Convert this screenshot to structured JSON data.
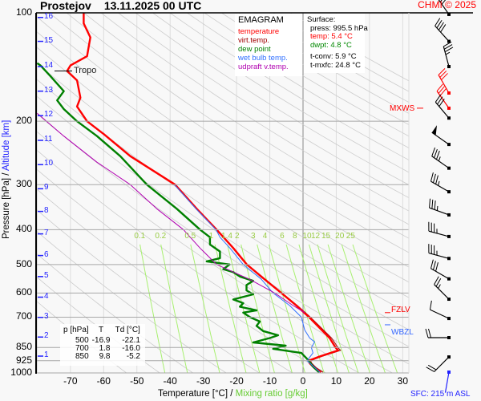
{
  "header": {
    "station": "Prostejov",
    "datetime": "13.11.2025 00 UTC",
    "copyright": "CHMI © 2025"
  },
  "legend": {
    "title": "EMAGRAM",
    "items": [
      {
        "label": "temperature",
        "color": "#ff0000"
      },
      {
        "label": "virt.temp.",
        "color": "#a00000"
      },
      {
        "label": "dew point",
        "color": "#008000"
      },
      {
        "label": "wet bulb temp.",
        "color": "#3070ff"
      },
      {
        "label": "udpraft v.temp.",
        "color": "#b000b0"
      }
    ]
  },
  "surface": {
    "heading": "Surface:",
    "press": "press: 995.5 hPa",
    "temp": "temp: 5.4 °C",
    "dwpt": "dwpt: 4.8 °C",
    "tconv": "t-conv: 5.9 °C",
    "tmxfc": "t-mxfc: 24.8 °C"
  },
  "level_table": {
    "headers": [
      "p [hPa]",
      "T",
      "Td [°C]"
    ],
    "rows": [
      [
        "500",
        "-16.9",
        "-22.1"
      ],
      [
        "700",
        "1.8",
        "-16.0"
      ],
      [
        "850",
        "9.8",
        "-5.2"
      ]
    ]
  },
  "annotations": {
    "tropo": "Tropo",
    "mxws": "MXWS",
    "fzlv": "FZLV",
    "wbzl": "WBZL",
    "sfc": "SFC: 215 m ASL"
  },
  "axes": {
    "ylabel": "Pressure [hPa]",
    "ylabel_sep": "/",
    "y2label": "Altitude [km]",
    "xlabel": "Temperature [°C]",
    "xlabel_sep": "/",
    "x2label": "Mixing ratio [g/kg]"
  },
  "chart_data": {
    "type": "line",
    "title": "EMAGRAM",
    "ylim": [
      1000,
      100
    ],
    "yscale": "log",
    "xlim": [
      -80,
      32
    ],
    "grid": true,
    "pressure_ticks": [
      "100",
      "200",
      "300",
      "400",
      "500",
      "600",
      "700",
      "850",
      "925",
      "1000"
    ],
    "temperature_ticks": [
      "-70",
      "-60",
      "-50",
      "-40",
      "-30",
      "-20",
      "-10",
      "0",
      "10",
      "20",
      "30"
    ],
    "altitude_ticks_km": [
      "1",
      "2",
      "3",
      "4",
      "5",
      "6",
      "7",
      "8",
      "9",
      "10",
      "11",
      "12",
      "13",
      "14",
      "15",
      "16"
    ],
    "mixing_ratio_lines": [
      "0.1",
      "0.2",
      "0.5",
      "1",
      "1.4",
      "2",
      "3",
      "4",
      "6",
      "8",
      "10",
      "12",
      "15",
      "20",
      "25"
    ],
    "colors": {
      "isobar": "#a8a8a8",
      "isotherm": "#dddddd",
      "zero_isotherm": "#888888",
      "dry_adiabat": "#cccccc",
      "mixing_ratio": "#a8f070",
      "altitude": "#2222ff"
    },
    "series": [
      {
        "name": "virt.temp.",
        "color": "#a00000",
        "points": [
          [
            995.5,
            6.0
          ],
          [
            970,
            4.1
          ],
          [
            940,
            2.6
          ],
          [
            925,
            2.3
          ],
          [
            900,
            5.6
          ],
          [
            866,
            11.3
          ],
          [
            850,
            10.5
          ],
          [
            800,
            8.6
          ],
          [
            750,
            5.5
          ],
          [
            700,
            2.2
          ],
          [
            650,
            -1.7
          ],
          [
            600,
            -6.3
          ],
          [
            550,
            -11.3
          ],
          [
            500,
            -16.8
          ],
          [
            450,
            -20.9
          ],
          [
            400,
            -26
          ],
          [
            350,
            -32
          ],
          [
            300,
            -38.5
          ]
        ]
      },
      {
        "name": "temperature",
        "color": "#ff0000",
        "points": [
          [
            995.5,
            5.4
          ],
          [
            970,
            3.5
          ],
          [
            940,
            2
          ],
          [
            925,
            1.7
          ],
          [
            900,
            5
          ],
          [
            866,
            10.6
          ],
          [
            850,
            9.8
          ],
          [
            800,
            8
          ],
          [
            750,
            5
          ],
          [
            700,
            1.8
          ],
          [
            650,
            -2
          ],
          [
            600,
            -6.5
          ],
          [
            550,
            -11.5
          ],
          [
            500,
            -16.9
          ],
          [
            450,
            -21
          ],
          [
            400,
            -26
          ],
          [
            350,
            -32
          ],
          [
            300,
            -38.5
          ],
          [
            250,
            -52
          ],
          [
            217,
            -60
          ],
          [
            200,
            -65
          ],
          [
            182,
            -68
          ],
          [
            172,
            -67
          ],
          [
            154,
            -68
          ],
          [
            145,
            -71
          ],
          [
            140,
            -70
          ],
          [
            132,
            -65
          ],
          [
            117,
            -64
          ],
          [
            107,
            -66
          ],
          [
            100,
            -66
          ]
        ]
      },
      {
        "name": "dew point",
        "color": "#008000",
        "points": [
          [
            995.5,
            4.8
          ],
          [
            960,
            3
          ],
          [
            920,
            1.5
          ],
          [
            880,
            -0.5
          ],
          [
            857,
            -9
          ],
          [
            840,
            -5.2
          ],
          [
            823,
            -15
          ],
          [
            800,
            -10
          ],
          [
            786,
            -7.5
          ],
          [
            765,
            -12
          ],
          [
            740,
            -14
          ],
          [
            720,
            -13
          ],
          [
            700,
            -16
          ],
          [
            680,
            -18
          ],
          [
            670,
            -14
          ],
          [
            655,
            -19
          ],
          [
            640,
            -18
          ],
          [
            625,
            -21
          ],
          [
            605,
            -15
          ],
          [
            590,
            -17
          ],
          [
            570,
            -17
          ],
          [
            555,
            -15
          ],
          [
            540,
            -19
          ],
          [
            525,
            -21
          ],
          [
            515,
            -24
          ],
          [
            500,
            -22.1
          ],
          [
            490,
            -29
          ],
          [
            480,
            -25
          ],
          [
            460,
            -25
          ],
          [
            440,
            -28
          ],
          [
            420,
            -28
          ],
          [
            400,
            -31
          ],
          [
            350,
            -38
          ],
          [
            300,
            -47
          ],
          [
            250,
            -55
          ],
          [
            220,
            -62
          ],
          [
            200,
            -68
          ],
          [
            185,
            -72
          ],
          [
            175,
            -74
          ],
          [
            165,
            -72
          ],
          [
            150,
            -76
          ],
          [
            140,
            -79
          ],
          [
            138,
            -80
          ]
        ]
      },
      {
        "name": "wet bulb temp.",
        "color": "#3070ff",
        "points": [
          [
            995.5,
            5.1
          ],
          [
            925,
            1.2
          ],
          [
            880,
            3
          ],
          [
            850,
            2.5
          ],
          [
            820,
            3.5
          ],
          [
            800,
            2
          ],
          [
            760,
            0.5
          ],
          [
            700,
            -0.5
          ],
          [
            650,
            -4
          ],
          [
            600,
            -9
          ],
          [
            550,
            -12.5
          ],
          [
            500,
            -18
          ],
          [
            450,
            -22
          ],
          [
            420,
            -25
          ],
          [
            400,
            -26.2
          ],
          [
            350,
            -32.2
          ],
          [
            300,
            -38.7
          ]
        ]
      },
      {
        "name": "udpraft v.temp.",
        "color": "#b000b0",
        "points": [
          [
            680,
            0.5
          ],
          [
            650,
            -3
          ],
          [
            600,
            -8.5
          ],
          [
            550,
            -16
          ],
          [
            500,
            -26
          ],
          [
            450,
            -31
          ],
          [
            400,
            -36
          ],
          [
            350,
            -44
          ],
          [
            300,
            -52
          ],
          [
            260,
            -62
          ],
          [
            220,
            -72
          ],
          [
            190,
            -80
          ]
        ]
      }
    ],
    "levels": {
      "tropopause_hpa": 145,
      "mxws_hpa": 184,
      "fzlv_hpa": 680,
      "wbzl_hpa": 735
    },
    "winds": [
      {
        "p": 101,
        "dir": 325,
        "speed": 40
      },
      {
        "p": 120,
        "dir": 318,
        "speed": 40
      },
      {
        "p": 141,
        "dir": 345,
        "speed": 35
      },
      {
        "p": 167,
        "dir": 330,
        "speed": 30,
        "color": "#ff0000"
      },
      {
        "p": 184,
        "dir": 325,
        "speed": 30,
        "color": "#ff0000"
      },
      {
        "p": 196,
        "dir": 320,
        "speed": 30
      },
      {
        "p": 232,
        "dir": 305,
        "speed": 50
      },
      {
        "p": 270,
        "dir": 305,
        "speed": 35
      },
      {
        "p": 314,
        "dir": 300,
        "speed": 35
      },
      {
        "p": 364,
        "dir": 290,
        "speed": 35
      },
      {
        "p": 418,
        "dir": 285,
        "speed": 35
      },
      {
        "p": 481,
        "dir": 285,
        "speed": 35
      },
      {
        "p": 548,
        "dir": 300,
        "speed": 30
      },
      {
        "p": 624,
        "dir": 315,
        "speed": 25
      },
      {
        "p": 706,
        "dir": 295,
        "speed": 10
      },
      {
        "p": 798,
        "dir": 270,
        "speed": 20
      },
      {
        "p": 903,
        "dir": 225,
        "speed": 20
      },
      {
        "p": 995.5,
        "dir": 190,
        "speed": 2,
        "color": "#2222ff"
      }
    ]
  }
}
